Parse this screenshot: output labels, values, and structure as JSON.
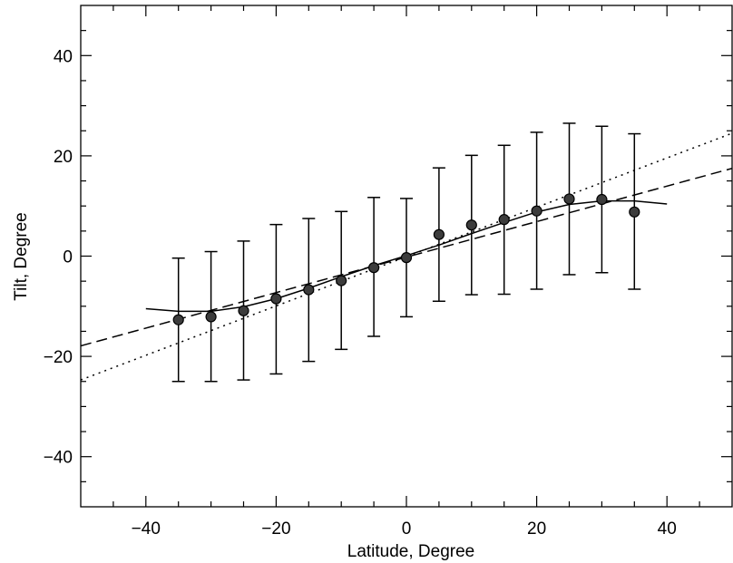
{
  "chart_data": {
    "type": "scatter",
    "title": "",
    "xlabel": "Latitude, Degree",
    "ylabel": "Tilt, Degree",
    "xlim": [
      -50,
      50
    ],
    "ylim": [
      -50,
      50
    ],
    "x_ticks": [
      -40,
      -20,
      0,
      20,
      40
    ],
    "y_ticks": [
      -40,
      -20,
      0,
      20,
      40
    ],
    "x_tick_labels": [
      "−40",
      "−20",
      "0",
      "20",
      "40"
    ],
    "y_tick_labels": [
      "−40",
      "−20",
      "0",
      "20",
      "40"
    ],
    "grid": false,
    "legend": "none",
    "series": [
      {
        "style": "markers-with-errorbars",
        "x": [
          -35,
          -30,
          -25,
          -20,
          -15,
          -10,
          -5,
          0,
          5,
          10,
          15,
          20,
          25,
          30,
          35
        ],
        "y": [
          -12.7,
          -12.1,
          -10.9,
          -8.5,
          -6.7,
          -4.9,
          -2.3,
          -0.3,
          4.3,
          6.2,
          7.3,
          9.0,
          11.4,
          11.3,
          8.8
        ],
        "yerr_low": [
          -25.0,
          -25.0,
          -24.7,
          -23.5,
          -21.0,
          -18.6,
          -16.0,
          -12.1,
          -9.0,
          -7.7,
          -7.6,
          -6.6,
          -3.7,
          -3.3,
          -6.6
        ],
        "yerr_high": [
          -0.4,
          0.9,
          3.0,
          6.3,
          7.5,
          8.9,
          11.7,
          11.5,
          17.6,
          20.1,
          22.1,
          24.7,
          26.5,
          25.9,
          24.4
        ]
      },
      {
        "style": "solid",
        "x": [
          -40,
          -35,
          -30,
          -25,
          -20,
          -15,
          -10,
          -5,
          0,
          5,
          10,
          15,
          20,
          25,
          30,
          35,
          40
        ],
        "y": [
          -10.5,
          -11.0,
          -11.0,
          -10.1,
          -8.5,
          -6.4,
          -4.1,
          -1.9,
          0.1,
          2.2,
          4.5,
          6.7,
          8.8,
          10.3,
          11.0,
          11.0,
          10.4
        ]
      },
      {
        "style": "dashed",
        "x": [
          -50,
          50
        ],
        "y": [
          -17.9,
          17.5
        ]
      },
      {
        "style": "dotted",
        "x": [
          -50,
          50
        ],
        "y": [
          -24.7,
          24.5
        ]
      }
    ]
  }
}
